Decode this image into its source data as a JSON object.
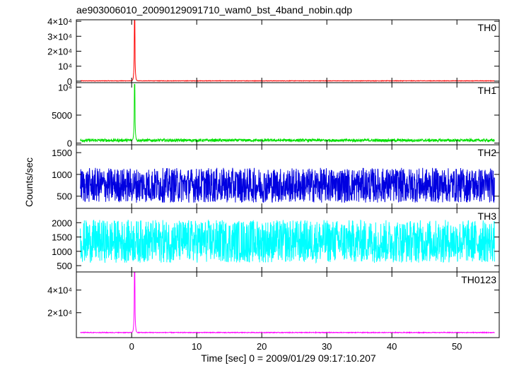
{
  "chart_data": {
    "type": "line",
    "title": "ae903006010_20090129091710_wam0_bst_4band_nobin.qdp",
    "xlabel": "Time [sec] 0 = 2009/01/29 09:17:10.207",
    "ylabel": "Counts/sec",
    "xlim": [
      -8.5,
      56.5
    ],
    "x_ticks": [
      0,
      10,
      20,
      30,
      40,
      50
    ],
    "x_tick_labels": [
      "0",
      "10",
      "20",
      "30",
      "40",
      "50"
    ],
    "grid": false,
    "panels": [
      {
        "name": "TH0",
        "color": "#ff0000",
        "ylim": [
          -1000,
          41000
        ],
        "y_ticks": [
          0,
          10000,
          20000,
          30000,
          40000
        ],
        "y_tick_labels": [
          "0",
          "10⁴",
          "2×10⁴",
          "3×10⁴",
          "4×10⁴"
        ],
        "baseline": 200,
        "noise": 300,
        "spikes": [
          {
            "x": 0.45,
            "value": 40500
          }
        ]
      },
      {
        "name": "TH1",
        "color": "#00e000",
        "ylim": [
          -300,
          10800
        ],
        "y_ticks": [
          0,
          5000,
          10000
        ],
        "y_tick_labels": [
          "0",
          "5000",
          "10⁴"
        ],
        "baseline": 500,
        "noise": 500,
        "spikes": [
          {
            "x": 0.45,
            "value": 10500
          }
        ]
      },
      {
        "name": "TH2",
        "color": "#0000e0",
        "ylim": [
          220,
          1680
        ],
        "y_ticks": [
          500,
          1000,
          1500
        ],
        "y_tick_labels": [
          "500",
          "1000",
          "1500"
        ],
        "baseline": 750,
        "noise": 800,
        "spikes": []
      },
      {
        "name": "TH3",
        "color": "#00ffff",
        "ylim": [
          280,
          2500
        ],
        "y_ticks": [
          500,
          1000,
          1500,
          2000
        ],
        "y_tick_labels": [
          "500",
          "1000",
          "1500",
          "2000"
        ],
        "baseline": 1350,
        "noise": 1500,
        "spikes": []
      },
      {
        "name": "TH0123",
        "color": "#ff00ff",
        "ylim": [
          -2000,
          56000
        ],
        "y_ticks": [
          20000,
          40000
        ],
        "y_tick_labels": [
          "2×10⁴",
          "4×10⁴"
        ],
        "baseline": 2500,
        "noise": 600,
        "spikes": [
          {
            "x": 0.45,
            "value": 56000
          }
        ]
      }
    ]
  }
}
